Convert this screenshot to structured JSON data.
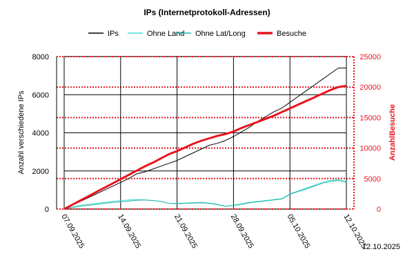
{
  "chart_data": {
    "type": "line",
    "title": "IPs (Internetprotokoll-Adressen)",
    "x": [
      "07.09.2025",
      "08.09.2025",
      "09.09.2025",
      "10.09.2025",
      "11.09.2025",
      "12.09.2025",
      "13.09.2025",
      "14.09.2025",
      "15.09.2025",
      "16.09.2025",
      "17.09.2025",
      "18.09.2025",
      "19.09.2025",
      "20.09.2025",
      "21.09.2025",
      "22.09.2025",
      "23.09.2025",
      "24.09.2025",
      "25.09.2025",
      "26.09.2025",
      "27.09.2025",
      "28.09.2025",
      "29.09.2025",
      "30.09.2025",
      "01.10.2025",
      "02.10.2025",
      "03.10.2025",
      "04.10.2025",
      "05.10.2025",
      "06.10.2025",
      "07.10.2025",
      "08.10.2025",
      "09.10.2025",
      "10.10.2025",
      "11.10.2025",
      "12.10.2025"
    ],
    "x_tick_labels": [
      "07.09.2025",
      "14.09.2025",
      "21.09.2025",
      "28.09.2025",
      "05.10.2025",
      "12.10.2025"
    ],
    "ylabel": "Anzahl verschiedene IPs",
    "ylim": [
      0,
      8000
    ],
    "y_ticks": [
      0,
      2000,
      4000,
      6000,
      8000
    ],
    "y2label": "AnzahlBesuche",
    "y2lim": [
      0,
      25000
    ],
    "y2_ticks": [
      0,
      5000,
      10000,
      15000,
      20000,
      25000
    ],
    "grid": true,
    "legend_position": "top",
    "series": [
      {
        "name": "IPs",
        "axis": "left",
        "color": "#000000",
        "width": 1,
        "values": [
          0,
          200,
          400,
          600,
          800,
          1000,
          1200,
          1400,
          1600,
          1850,
          1950,
          2100,
          2250,
          2400,
          2550,
          2750,
          2950,
          3150,
          3350,
          3450,
          3600,
          3800,
          4050,
          4300,
          4600,
          4850,
          5100,
          5300,
          5600,
          5900,
          6200,
          6500,
          6800,
          7100,
          7400,
          7400
        ]
      },
      {
        "name": "Ohne Land",
        "axis": "left",
        "color": "#40e0d0",
        "width": 1,
        "values": [
          0,
          100,
          200,
          250,
          300,
          350,
          400,
          450,
          480,
          500,
          480,
          450,
          400,
          300,
          300,
          320,
          340,
          350,
          320,
          250,
          150,
          200,
          280,
          350,
          400,
          450,
          500,
          550,
          800,
          950,
          1100,
          1250,
          1400,
          1500,
          1550,
          1450
        ]
      },
      {
        "name": "Ohne Lat/Long",
        "axis": "left",
        "color": "#20b2aa",
        "width": 1,
        "values": [
          0,
          80,
          150,
          200,
          250,
          300,
          350,
          380,
          420,
          460,
          480,
          450,
          400,
          300,
          280,
          300,
          320,
          330,
          300,
          230,
          150,
          180,
          250,
          330,
          380,
          430,
          480,
          530,
          780,
          920,
          1050,
          1200,
          1350,
          1450,
          1500,
          1400
        ]
      },
      {
        "name": "Besuche",
        "axis": "right",
        "color": "#e8141e",
        "width": 3,
        "values": [
          0,
          700,
          1400,
          2100,
          2800,
          3500,
          4200,
          4900,
          5600,
          6300,
          7000,
          7600,
          8300,
          9000,
          9500,
          10100,
          10700,
          11200,
          11600,
          12000,
          12300,
          12700,
          13300,
          13800,
          14300,
          14800,
          15300,
          15900,
          16500,
          17100,
          17700,
          18300,
          18900,
          19500,
          20000,
          20200
        ]
      }
    ]
  },
  "footer": {
    "date": "12.10.2025"
  }
}
